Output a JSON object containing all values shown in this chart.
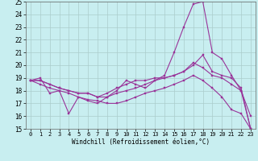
{
  "xlabel": "Windchill (Refroidissement éolien,°C)",
  "background_color": "#c8eef0",
  "grid_color": "#aacccc",
  "line_color": "#993399",
  "xlim": [
    -0.5,
    23.5
  ],
  "ylim": [
    15,
    25
  ],
  "yticks": [
    15,
    16,
    17,
    18,
    19,
    20,
    21,
    22,
    23,
    24,
    25
  ],
  "xticks": [
    0,
    1,
    2,
    3,
    4,
    5,
    6,
    7,
    8,
    9,
    10,
    11,
    12,
    13,
    14,
    15,
    16,
    17,
    18,
    19,
    20,
    21,
    22,
    23
  ],
  "line1_x": [
    0,
    1,
    2,
    3,
    4,
    5,
    6,
    7,
    8,
    9,
    10,
    11,
    12,
    13,
    14,
    15,
    16,
    17,
    18,
    19,
    20,
    21,
    22,
    23
  ],
  "line1_y": [
    18.8,
    19.0,
    17.8,
    18.0,
    16.2,
    17.5,
    17.2,
    17.0,
    17.5,
    18.0,
    18.8,
    18.5,
    18.2,
    18.8,
    19.2,
    21.0,
    23.0,
    24.8,
    25.0,
    21.0,
    20.5,
    19.2,
    18.0,
    15.0
  ],
  "line2_x": [
    0,
    1,
    2,
    3,
    4,
    5,
    6,
    7,
    8,
    9,
    10,
    11,
    12,
    13,
    14,
    15,
    16,
    17,
    18,
    19,
    20,
    21,
    22,
    23
  ],
  "line2_y": [
    18.8,
    18.8,
    18.5,
    18.2,
    18.0,
    17.8,
    17.8,
    17.5,
    17.8,
    18.2,
    18.5,
    18.8,
    18.8,
    19.0,
    19.0,
    19.2,
    19.5,
    20.0,
    20.8,
    19.5,
    19.2,
    19.0,
    18.2,
    15.0
  ],
  "line3_x": [
    0,
    1,
    2,
    3,
    4,
    5,
    6,
    7,
    8,
    9,
    10,
    11,
    12,
    13,
    14,
    15,
    16,
    17,
    18,
    19,
    20,
    21,
    22,
    23
  ],
  "line3_y": [
    18.8,
    18.8,
    18.5,
    18.2,
    18.0,
    17.8,
    17.8,
    17.5,
    17.5,
    17.8,
    18.0,
    18.2,
    18.5,
    18.8,
    19.0,
    19.2,
    19.5,
    20.2,
    19.8,
    19.2,
    19.0,
    18.5,
    18.0,
    16.0
  ],
  "line4_x": [
    0,
    1,
    2,
    3,
    4,
    5,
    6,
    7,
    8,
    9,
    10,
    11,
    12,
    13,
    14,
    15,
    16,
    17,
    18,
    19,
    20,
    21,
    22,
    23
  ],
  "line4_y": [
    18.8,
    18.5,
    18.2,
    18.0,
    17.8,
    17.5,
    17.3,
    17.2,
    17.0,
    17.0,
    17.2,
    17.5,
    17.8,
    18.0,
    18.2,
    18.5,
    18.8,
    19.2,
    18.8,
    18.2,
    17.5,
    16.5,
    16.2,
    15.0
  ]
}
